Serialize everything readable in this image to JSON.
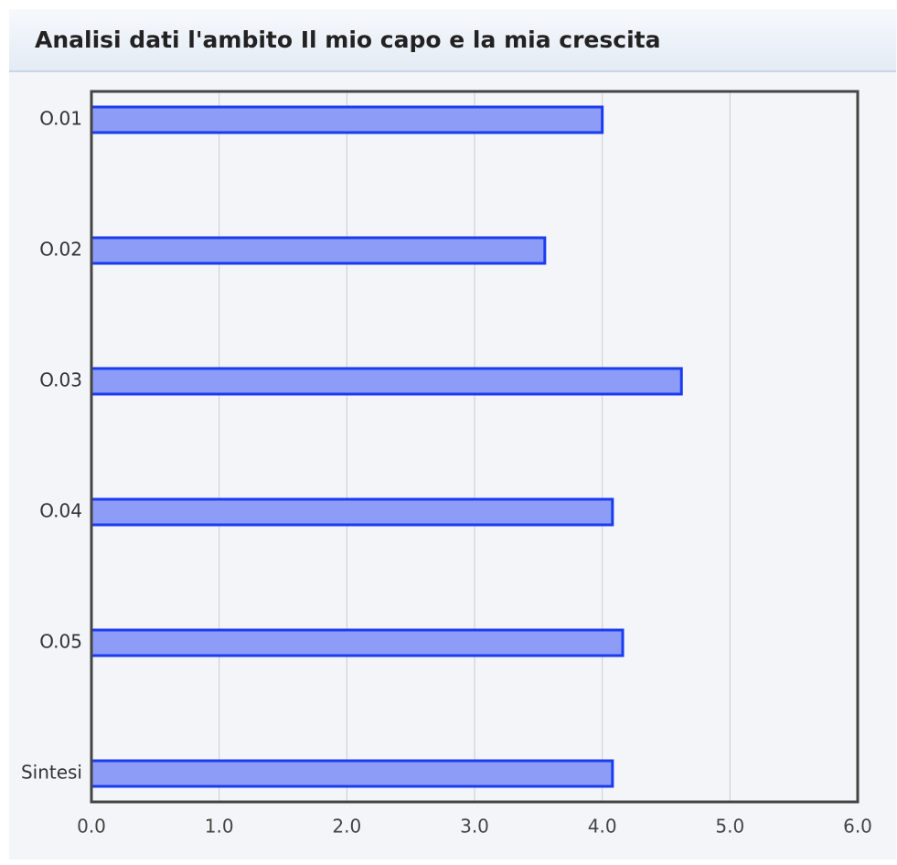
{
  "chart_data": {
    "type": "bar",
    "orientation": "horizontal",
    "title": "Analisi dati l'ambito Il mio capo e la mia crescita",
    "categories": [
      "O.01",
      "O.02",
      "O.03",
      "O.04",
      "O.05",
      "Sintesi"
    ],
    "values": [
      4.0,
      3.55,
      4.62,
      4.08,
      4.16,
      4.08
    ],
    "color": "#8c9cf7",
    "edge_color": "#1a3cf0",
    "xlim": [
      0,
      6
    ],
    "xticks": [
      {
        "value": 0,
        "label": "0.0"
      },
      {
        "value": 1,
        "label": "1.0"
      },
      {
        "value": 2,
        "label": "2.0"
      },
      {
        "value": 3,
        "label": "3.0"
      },
      {
        "value": 4,
        "label": "4.0"
      },
      {
        "value": 5,
        "label": "5.0"
      },
      {
        "value": 6,
        "label": "6.0"
      }
    ],
    "grid": true
  }
}
